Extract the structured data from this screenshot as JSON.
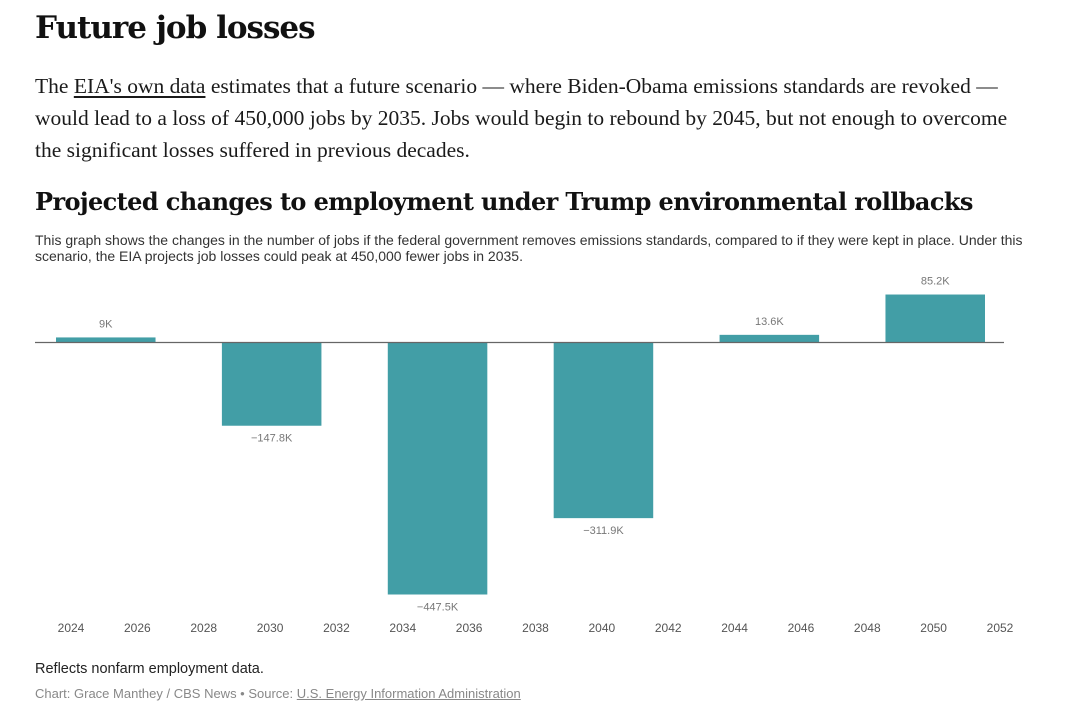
{
  "article": {
    "headline": "Future job losses",
    "intro_prefix": "The ",
    "intro_link": "EIA's own data",
    "intro_rest": " estimates that a future scenario — where Biden-Obama emissions standards are revoked — would lead to a loss of 450,000 jobs by 2035. Jobs would begin to rebound by 2045, but not enough to overcome the significant losses suffered in previous decades."
  },
  "chart_data": {
    "type": "bar",
    "title": "Projected changes to employment under Trump environmental rollbacks",
    "description": "This graph shows the changes in the number of jobs if the federal government removes emissions standards, compared to if they were kept in place. Under this scenario, the EIA projects job losses could peak at 450,000 fewer jobs in 2035.",
    "xlabel": "",
    "ylabel": "",
    "xlim": [
      2024,
      2052
    ],
    "ylim": [
      -460,
      90
    ],
    "x_ticks": [
      "2024",
      "2026",
      "2028",
      "2030",
      "2032",
      "2034",
      "2036",
      "2038",
      "2040",
      "2042",
      "2044",
      "2046",
      "2048",
      "2050",
      "2052"
    ],
    "bars": [
      {
        "start": 2024,
        "end": 2027,
        "value": 9,
        "label": "9K"
      },
      {
        "start": 2029,
        "end": 2032,
        "value": -147.8,
        "label": "−147.8K"
      },
      {
        "start": 2034,
        "end": 2037,
        "value": -447.5,
        "label": "−447.5K"
      },
      {
        "start": 2039,
        "end": 2042,
        "value": -311.9,
        "label": "−311.9K"
      },
      {
        "start": 2044,
        "end": 2047,
        "value": 13.6,
        "label": "13.6K"
      },
      {
        "start": 2049,
        "end": 2052,
        "value": 85.2,
        "label": "85.2K"
      }
    ],
    "bar_color": "#429ea6",
    "baseline_color": "#666666",
    "grid": false
  },
  "footer": {
    "note": "Reflects nonfarm employment data.",
    "credit_prefix": "Chart: Grace Manthey / CBS News • Source: ",
    "credit_link": "U.S. Energy Information Administration"
  }
}
